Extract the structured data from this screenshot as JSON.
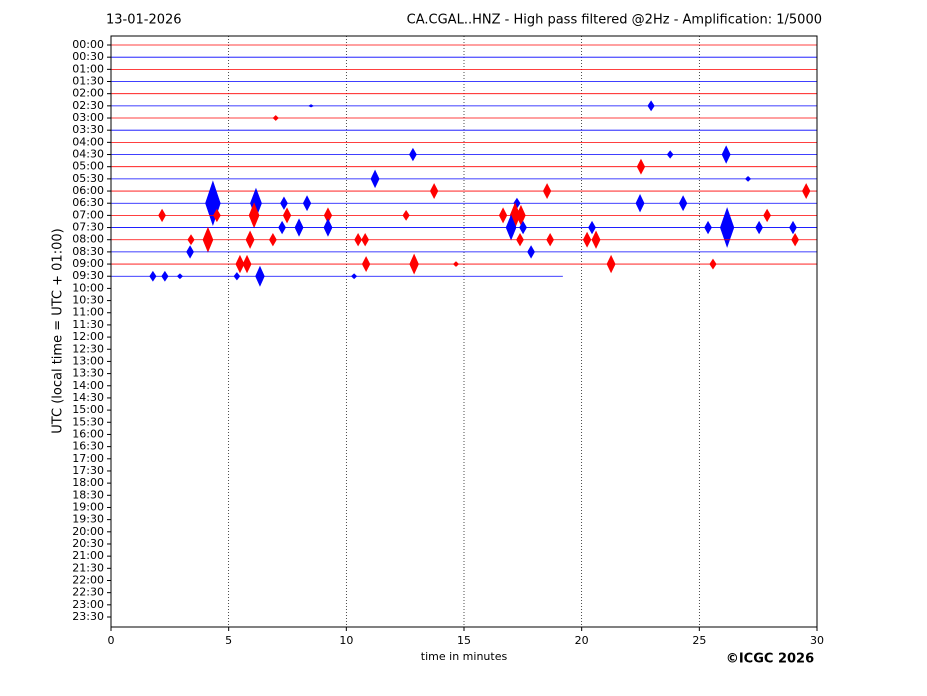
{
  "chart_data": {
    "type": "helicorder",
    "date": "13-01-2026",
    "title": "CA.CGAL..HNZ - High pass filtered @2Hz - Amplification: 1/5000",
    "ylabel": "UTC (local time = UTC + 01:00)",
    "xlabel": "time in minutes",
    "credit": "©ICGC 2026",
    "xlim": [
      0,
      30
    ],
    "xticks": [
      0,
      5,
      10,
      15,
      20,
      25,
      30
    ],
    "grid": true,
    "categories": [
      "00:00",
      "00:30",
      "01:00",
      "01:30",
      "02:00",
      "02:30",
      "03:00",
      "03:30",
      "04:00",
      "04:30",
      "05:00",
      "05:30",
      "06:00",
      "06:30",
      "07:00",
      "07:30",
      "08:00",
      "08:30",
      "09:00",
      "09:30",
      "10:00",
      "10:30",
      "11:00",
      "11:30",
      "12:00",
      "12:30",
      "13:00",
      "13:30",
      "14:00",
      "14:30",
      "15:00",
      "15:30",
      "16:00",
      "16:30",
      "17:00",
      "17:30",
      "18:00",
      "18:30",
      "19:00",
      "19:30",
      "20:00",
      "20:30",
      "21:00",
      "21:30",
      "22:00",
      "22:30",
      "23:00",
      "23:30"
    ],
    "series": [
      {
        "color": "#ff0000",
        "end": 30,
        "x": [],
        "amp": []
      },
      {
        "color": "#0000ff",
        "end": 30,
        "x": [],
        "amp": []
      },
      {
        "color": "#ff0000",
        "end": 30,
        "x": [],
        "amp": []
      },
      {
        "color": "#0000ff",
        "end": 30,
        "x": [],
        "amp": []
      },
      {
        "color": "#ff0000",
        "end": 30,
        "x": [],
        "amp": []
      },
      {
        "color": "#0000ff",
        "end": 30,
        "x": [
          8.5,
          22.95
        ],
        "amp": [
          0.1,
          0.4
        ]
      },
      {
        "color": "#ff0000",
        "end": 30,
        "x": [
          7.0
        ],
        "amp": [
          0.2
        ]
      },
      {
        "color": "#0000ff",
        "end": 30,
        "x": [],
        "amp": []
      },
      {
        "color": "#ff0000",
        "end": 30,
        "x": [],
        "amp": []
      },
      {
        "color": "#0000ff",
        "end": 30,
        "x": [
          12.83,
          23.76,
          26.14
        ],
        "amp": [
          0.5,
          0.3,
          0.7
        ]
      },
      {
        "color": "#ff0000",
        "end": 30,
        "x": [
          22.52
        ],
        "amp": [
          0.6
        ]
      },
      {
        "color": "#0000ff",
        "end": 30,
        "x": [
          11.22,
          27.07
        ],
        "amp": [
          0.7,
          0.2
        ]
      },
      {
        "color": "#ff0000",
        "end": 30,
        "x": [
          13.73,
          18.53,
          29.54
        ],
        "amp": [
          0.6,
          0.6,
          0.6
        ]
      },
      {
        "color": "#0000ff",
        "end": 30,
        "x": [
          4.33,
          6.16,
          7.35,
          8.33,
          17.25,
          22.48,
          24.31
        ],
        "amp": [
          1.8,
          1.2,
          0.5,
          0.6,
          0.4,
          0.7,
          0.6
        ]
      },
      {
        "color": "#ff0000",
        "end": 30,
        "x": [
          2.17,
          4.5,
          6.08,
          7.48,
          9.22,
          12.54,
          16.66,
          17.17,
          17.42,
          27.88
        ],
        "amp": [
          0.5,
          0.5,
          1.0,
          0.6,
          0.6,
          0.4,
          0.6,
          1.0,
          0.8,
          0.5
        ]
      },
      {
        "color": "#0000ff",
        "end": 30,
        "x": [
          7.27,
          7.99,
          9.22,
          17.0,
          17.51,
          20.44,
          25.37,
          26.18,
          27.54,
          28.98
        ],
        "amp": [
          0.5,
          0.7,
          0.7,
          1.0,
          0.5,
          0.5,
          0.5,
          1.6,
          0.5,
          0.5
        ]
      },
      {
        "color": "#ff0000",
        "end": 30,
        "x": [
          3.4,
          4.12,
          5.91,
          6.88,
          10.5,
          10.8,
          17.38,
          18.66,
          20.23,
          20.61,
          29.07
        ],
        "amp": [
          0.4,
          1.0,
          0.7,
          0.5,
          0.5,
          0.5,
          0.5,
          0.5,
          0.6,
          0.7,
          0.5
        ]
      },
      {
        "color": "#0000ff",
        "end": 30,
        "x": [
          3.36,
          17.85
        ],
        "amp": [
          0.5,
          0.5
        ]
      },
      {
        "color": "#ff0000",
        "end": 30,
        "x": [
          5.48,
          5.78,
          10.84,
          12.88,
          14.66,
          21.25,
          25.58
        ],
        "amp": [
          0.7,
          0.7,
          0.6,
          0.8,
          0.2,
          0.7,
          0.4
        ]
      },
      {
        "color": "#0000ff",
        "end": 19.2,
        "x": [
          1.78,
          2.29,
          2.93,
          5.35,
          6.33,
          10.33
        ],
        "amp": [
          0.4,
          0.4,
          0.2,
          0.3,
          0.8,
          0.2
        ]
      }
    ]
  }
}
